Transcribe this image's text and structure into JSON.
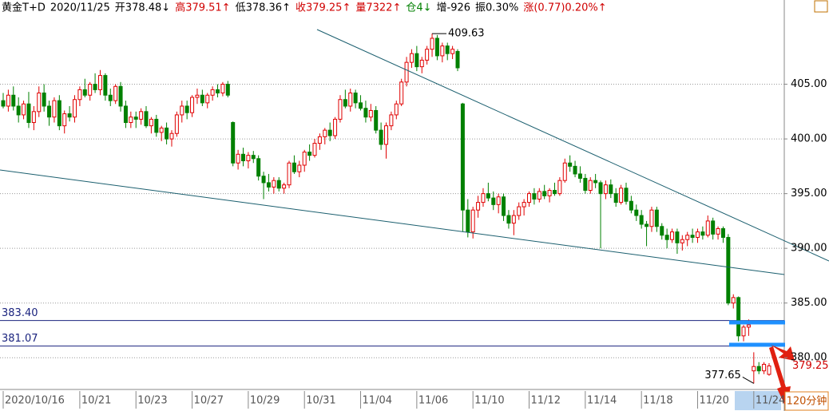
{
  "chart_data": {
    "type": "candlestick",
    "header": [
      {
        "text": "黄金T+D",
        "color": "#000000"
      },
      {
        "text": "2020/11/25",
        "color": "#000000"
      },
      {
        "text": "开378.48↓",
        "color": "#000000"
      },
      {
        "text": "高379.51↑",
        "color": "#d00000"
      },
      {
        "text": "低378.36↑",
        "color": "#000000"
      },
      {
        "text": "收379.25↑",
        "color": "#d00000"
      },
      {
        "text": "量7322↑",
        "color": "#d00000"
      },
      {
        "text": "仓4↓",
        "color": "#008000"
      },
      {
        "text": "增-926",
        "color": "#000000"
      },
      {
        "text": "振0.30%",
        "color": "#000000"
      },
      {
        "text": "涨(0.77)0.20%↑",
        "color": "#d00000"
      }
    ],
    "up_color": "#e00000",
    "down_color": "#008000",
    "ylim": [
      377.1,
      412.7
    ],
    "yticks": [
      {
        "value": 380,
        "label": "380.00"
      },
      {
        "value": 385,
        "label": "385.00"
      },
      {
        "value": 390,
        "label": "390.00"
      },
      {
        "value": 395,
        "label": "395.00"
      },
      {
        "value": 400,
        "label": "400.00"
      },
      {
        "value": 405,
        "label": "405.00"
      }
    ],
    "hlines": [
      {
        "value": 383.4,
        "label": "383.40"
      },
      {
        "value": 381.07,
        "label": "381.07"
      }
    ],
    "high_label": {
      "value": 409.63,
      "label": "409.63",
      "index": 84
    },
    "low_label": {
      "value": 377.65,
      "label": "377.65",
      "index": 147
    },
    "last_label": {
      "value": 379.25,
      "label": "379.25"
    },
    "period": "120分钟",
    "categories": [
      "2020/10/16",
      null,
      null,
      null,
      null,
      null,
      null,
      null,
      null,
      null,
      null,
      null,
      null,
      null,
      null,
      "10/21",
      null,
      null,
      null,
      null,
      null,
      null,
      null,
      null,
      null,
      null,
      "10/23",
      null,
      null,
      null,
      null,
      null,
      null,
      null,
      null,
      null,
      null,
      "10/27",
      null,
      null,
      null,
      null,
      null,
      null,
      null,
      null,
      null,
      null,
      "10/29",
      null,
      null,
      null,
      null,
      null,
      null,
      null,
      null,
      null,
      null,
      "10/31",
      null,
      null,
      null,
      null,
      null,
      null,
      null,
      null,
      null,
      null,
      "11/04",
      null,
      null,
      null,
      null,
      null,
      null,
      null,
      null,
      null,
      null,
      "11/06",
      null,
      null,
      null,
      null,
      null,
      null,
      null,
      null,
      null,
      null,
      "11/10",
      null,
      null,
      null,
      null,
      null,
      null,
      null,
      null,
      null,
      null,
      "11/12",
      null,
      null,
      null,
      null,
      null,
      null,
      null,
      null,
      null,
      null,
      "11/14",
      null,
      null,
      null,
      null,
      null,
      null,
      null,
      null,
      null,
      null,
      "11/18",
      null,
      null,
      null,
      null,
      null,
      null,
      null,
      null,
      null,
      null,
      "11/20",
      null,
      null,
      null,
      null,
      null,
      null,
      null,
      null,
      null,
      null,
      "11/24",
      null,
      null,
      null
    ],
    "ohlc": [
      [
        403.5,
        404.2,
        402.8,
        403.0
      ],
      [
        403.0,
        404.5,
        402.5,
        404.0
      ],
      [
        404.0,
        404.8,
        402.6,
        403.0
      ],
      [
        403.0,
        403.8,
        401.5,
        402.2
      ],
      [
        402.2,
        403.5,
        401.8,
        403.2
      ],
      [
        403.2,
        404.3,
        401.0,
        401.5
      ],
      [
        401.5,
        403.0,
        400.8,
        402.5
      ],
      [
        402.5,
        404.8,
        402.0,
        404.2
      ],
      [
        404.2,
        405.0,
        402.5,
        403.0
      ],
      [
        403.0,
        403.5,
        401.2,
        402.0
      ],
      [
        402.0,
        403.8,
        401.5,
        403.5
      ],
      [
        403.5,
        404.0,
        400.8,
        401.2
      ],
      [
        401.2,
        402.6,
        400.5,
        402.3
      ],
      [
        402.3,
        403.0,
        401.6,
        402.0
      ],
      [
        402.0,
        404.0,
        401.5,
        403.6
      ],
      [
        403.6,
        404.8,
        403.0,
        404.5
      ],
      [
        404.5,
        405.5,
        403.8,
        404.0
      ],
      [
        404.0,
        405.2,
        403.5,
        405.0
      ],
      [
        405.0,
        406.0,
        404.2,
        404.5
      ],
      [
        404.5,
        406.3,
        404.0,
        405.8
      ],
      [
        405.8,
        406.0,
        403.5,
        404.0
      ],
      [
        404.0,
        404.6,
        403.0,
        403.5
      ],
      [
        403.5,
        405.0,
        403.2,
        404.8
      ],
      [
        404.8,
        405.2,
        402.5,
        403.0
      ],
      [
        403.0,
        403.5,
        401.0,
        401.5
      ],
      [
        401.5,
        402.5,
        401.0,
        402.0
      ],
      [
        402.0,
        402.5,
        401.0,
        401.8
      ],
      [
        401.8,
        402.8,
        401.3,
        402.5
      ],
      [
        402.5,
        403.0,
        401.0,
        401.2
      ],
      [
        401.2,
        402.0,
        400.5,
        401.8
      ],
      [
        401.8,
        402.2,
        400.2,
        400.6
      ],
      [
        400.6,
        401.2,
        399.8,
        401.0
      ],
      [
        401.0,
        401.5,
        399.5,
        400.0
      ],
      [
        400.0,
        400.8,
        399.3,
        400.5
      ],
      [
        400.5,
        402.5,
        400.2,
        402.2
      ],
      [
        402.2,
        403.5,
        401.5,
        403.0
      ],
      [
        403.0,
        403.5,
        401.8,
        402.4
      ],
      [
        402.4,
        404.0,
        402.0,
        403.8
      ],
      [
        403.8,
        404.6,
        403.2,
        404.0
      ],
      [
        404.0,
        404.5,
        403.0,
        403.3
      ],
      [
        403.3,
        404.2,
        402.8,
        404.0
      ],
      [
        404.0,
        404.8,
        403.5,
        404.5
      ],
      [
        404.5,
        405.0,
        403.8,
        404.2
      ],
      [
        404.2,
        405.2,
        403.9,
        405.0
      ],
      [
        405.0,
        405.3,
        403.8,
        404.0
      ],
      [
        401.5,
        401.6,
        397.5,
        397.8
      ],
      [
        397.8,
        399.0,
        397.2,
        398.6
      ],
      [
        398.6,
        399.2,
        397.5,
        398.0
      ],
      [
        398.0,
        398.8,
        397.3,
        398.5
      ],
      [
        398.5,
        398.9,
        397.8,
        398.2
      ],
      [
        398.2,
        398.5,
        396.2,
        396.6
      ],
      [
        396.6,
        397.0,
        394.5,
        396.0
      ],
      [
        396.0,
        396.8,
        395.2,
        395.6
      ],
      [
        395.6,
        396.5,
        395.0,
        396.2
      ],
      [
        396.2,
        396.5,
        395.2,
        395.5
      ],
      [
        395.5,
        396.0,
        395.0,
        395.8
      ],
      [
        395.8,
        398.0,
        395.5,
        397.8
      ],
      [
        397.8,
        398.5,
        396.8,
        397.0
      ],
      [
        397.0,
        398.0,
        396.5,
        397.6
      ],
      [
        397.6,
        399.0,
        397.0,
        398.8
      ],
      [
        398.8,
        399.5,
        398.0,
        398.5
      ],
      [
        398.5,
        400.0,
        398.3,
        399.6
      ],
      [
        399.6,
        400.5,
        399.0,
        400.2
      ],
      [
        400.2,
        401.0,
        399.5,
        400.8
      ],
      [
        400.8,
        401.5,
        399.8,
        400.3
      ],
      [
        400.3,
        402.0,
        400.0,
        401.8
      ],
      [
        401.8,
        404.0,
        401.5,
        403.6
      ],
      [
        403.6,
        404.5,
        402.8,
        403.0
      ],
      [
        403.0,
        404.6,
        402.5,
        404.2
      ],
      [
        404.2,
        404.5,
        402.8,
        403.3
      ],
      [
        403.3,
        404.0,
        402.6,
        402.8
      ],
      [
        402.8,
        403.5,
        401.5,
        402.0
      ],
      [
        402.0,
        403.2,
        401.6,
        402.6
      ],
      [
        402.6,
        403.0,
        400.5,
        400.8
      ],
      [
        400.8,
        401.5,
        399.0,
        399.5
      ],
      [
        399.5,
        401.5,
        398.2,
        401.2
      ],
      [
        401.2,
        402.5,
        400.8,
        402.2
      ],
      [
        402.2,
        403.5,
        401.8,
        403.2
      ],
      [
        403.2,
        405.5,
        403.0,
        405.2
      ],
      [
        405.2,
        407.5,
        404.8,
        407.0
      ],
      [
        407.0,
        408.2,
        406.5,
        407.8
      ],
      [
        407.8,
        408.5,
        406.2,
        406.6
      ],
      [
        406.6,
        407.5,
        406.0,
        407.2
      ],
      [
        407.2,
        408.5,
        406.8,
        408.2
      ],
      [
        408.2,
        409.63,
        407.5,
        409.2
      ],
      [
        409.2,
        409.5,
        407.2,
        407.6
      ],
      [
        407.6,
        408.8,
        407.0,
        408.5
      ],
      [
        408.5,
        408.8,
        407.2,
        407.8
      ],
      [
        407.8,
        408.5,
        407.3,
        408.2
      ],
      [
        408.0,
        408.2,
        406.2,
        406.5
      ],
      [
        403.2,
        403.3,
        391.5,
        393.5
      ],
      [
        393.5,
        394.5,
        391.0,
        391.5
      ],
      [
        391.5,
        393.8,
        390.9,
        393.5
      ],
      [
        393.5,
        394.8,
        392.8,
        394.2
      ],
      [
        394.2,
        395.5,
        393.8,
        395.0
      ],
      [
        395.0,
        396.0,
        394.3,
        394.6
      ],
      [
        394.6,
        395.2,
        393.5,
        394.0
      ],
      [
        394.0,
        395.0,
        393.2,
        394.7
      ],
      [
        394.7,
        395.0,
        392.5,
        393.0
      ],
      [
        393.0,
        393.5,
        391.8,
        392.3
      ],
      [
        392.3,
        393.5,
        391.2,
        393.0
      ],
      [
        393.0,
        394.2,
        392.6,
        393.8
      ],
      [
        393.8,
        394.5,
        393.0,
        394.2
      ],
      [
        394.2,
        395.2,
        393.8,
        395.0
      ],
      [
        395.0,
        395.5,
        394.0,
        394.5
      ],
      [
        394.5,
        395.5,
        394.2,
        395.2
      ],
      [
        395.2,
        395.8,
        394.5,
        394.8
      ],
      [
        394.8,
        395.5,
        394.2,
        395.3
      ],
      [
        395.3,
        396.0,
        394.8,
        395.0
      ],
      [
        395.0,
        396.5,
        394.8,
        396.2
      ],
      [
        396.2,
        398.2,
        396.0,
        397.8
      ],
      [
        397.8,
        398.5,
        397.0,
        397.5
      ],
      [
        397.5,
        398.0,
        396.5,
        396.8
      ],
      [
        396.8,
        397.5,
        396.0,
        396.4
      ],
      [
        396.4,
        396.8,
        395.0,
        395.3
      ],
      [
        395.3,
        396.5,
        395.0,
        396.2
      ],
      [
        396.2,
        396.8,
        395.5,
        396.0
      ],
      [
        396.0,
        396.2,
        390.0,
        395.0
      ],
      [
        395.0,
        396.2,
        394.5,
        395.8
      ],
      [
        395.8,
        396.3,
        394.6,
        395.0
      ],
      [
        395.0,
        395.5,
        393.8,
        394.2
      ],
      [
        394.2,
        395.8,
        394.0,
        395.5
      ],
      [
        395.5,
        396.0,
        394.0,
        394.3
      ],
      [
        394.3,
        394.8,
        393.2,
        393.5
      ],
      [
        393.5,
        394.0,
        392.5,
        393.0
      ],
      [
        393.0,
        393.5,
        391.8,
        392.2
      ],
      [
        392.2,
        392.5,
        390.2,
        392.0
      ],
      [
        392.0,
        393.8,
        391.5,
        393.5
      ],
      [
        393.5,
        393.8,
        391.5,
        392.0
      ],
      [
        392.0,
        392.3,
        390.8,
        391.2
      ],
      [
        391.2,
        391.8,
        390.0,
        390.8
      ],
      [
        390.8,
        391.8,
        390.5,
        391.5
      ],
      [
        391.5,
        391.8,
        389.5,
        390.5
      ],
      [
        390.5,
        391.2,
        389.8,
        390.8
      ],
      [
        390.8,
        391.5,
        390.2,
        391.2
      ],
      [
        391.2,
        391.8,
        390.5,
        391.0
      ],
      [
        391.0,
        391.8,
        390.5,
        391.5
      ],
      [
        391.5,
        392.0,
        390.8,
        391.2
      ],
      [
        391.2,
        393.0,
        391.0,
        392.5
      ],
      [
        392.5,
        392.8,
        390.8,
        391.3
      ],
      [
        391.3,
        392.0,
        390.8,
        391.8
      ],
      [
        391.8,
        392.0,
        390.5,
        391.0
      ],
      [
        391.0,
        391.3,
        384.8,
        385.0
      ],
      [
        385.0,
        385.8,
        384.5,
        385.5
      ],
      [
        385.5,
        385.6,
        381.5,
        382.0
      ],
      [
        382.0,
        383.0,
        381.5,
        382.8
      ],
      [
        382.8,
        383.5,
        382.0,
        383.0
      ],
      [
        378.8,
        380.5,
        377.65,
        379.2
      ],
      [
        379.2,
        379.6,
        378.5,
        378.8
      ],
      [
        378.8,
        379.6,
        378.5,
        379.4
      ],
      [
        378.48,
        379.51,
        378.36,
        379.25
      ]
    ]
  }
}
